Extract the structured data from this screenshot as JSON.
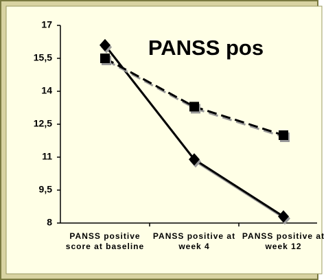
{
  "chart_data": {
    "type": "line",
    "title": "PANSS pos",
    "categories": [
      "PANSS positive score at baseline",
      "PANSS positive at week 4",
      "PANSS positive at week 12"
    ],
    "series": [
      {
        "color": "#000000",
        "marker": "diamond",
        "dash": false,
        "values": [
          16.1,
          10.9,
          8.3
        ]
      },
      {
        "color": "#000000",
        "marker": "square",
        "dash": true,
        "values": [
          15.5,
          13.3,
          12.0
        ]
      }
    ],
    "ylim": [
      8,
      17
    ],
    "yticks": [
      8,
      {
        "value": 9.5,
        "label": "9,5"
      },
      11,
      {
        "value": 12.5,
        "label": "12,5"
      },
      14,
      {
        "value": 15.5,
        "label": "15,5"
      },
      17
    ],
    "grid": false
  }
}
